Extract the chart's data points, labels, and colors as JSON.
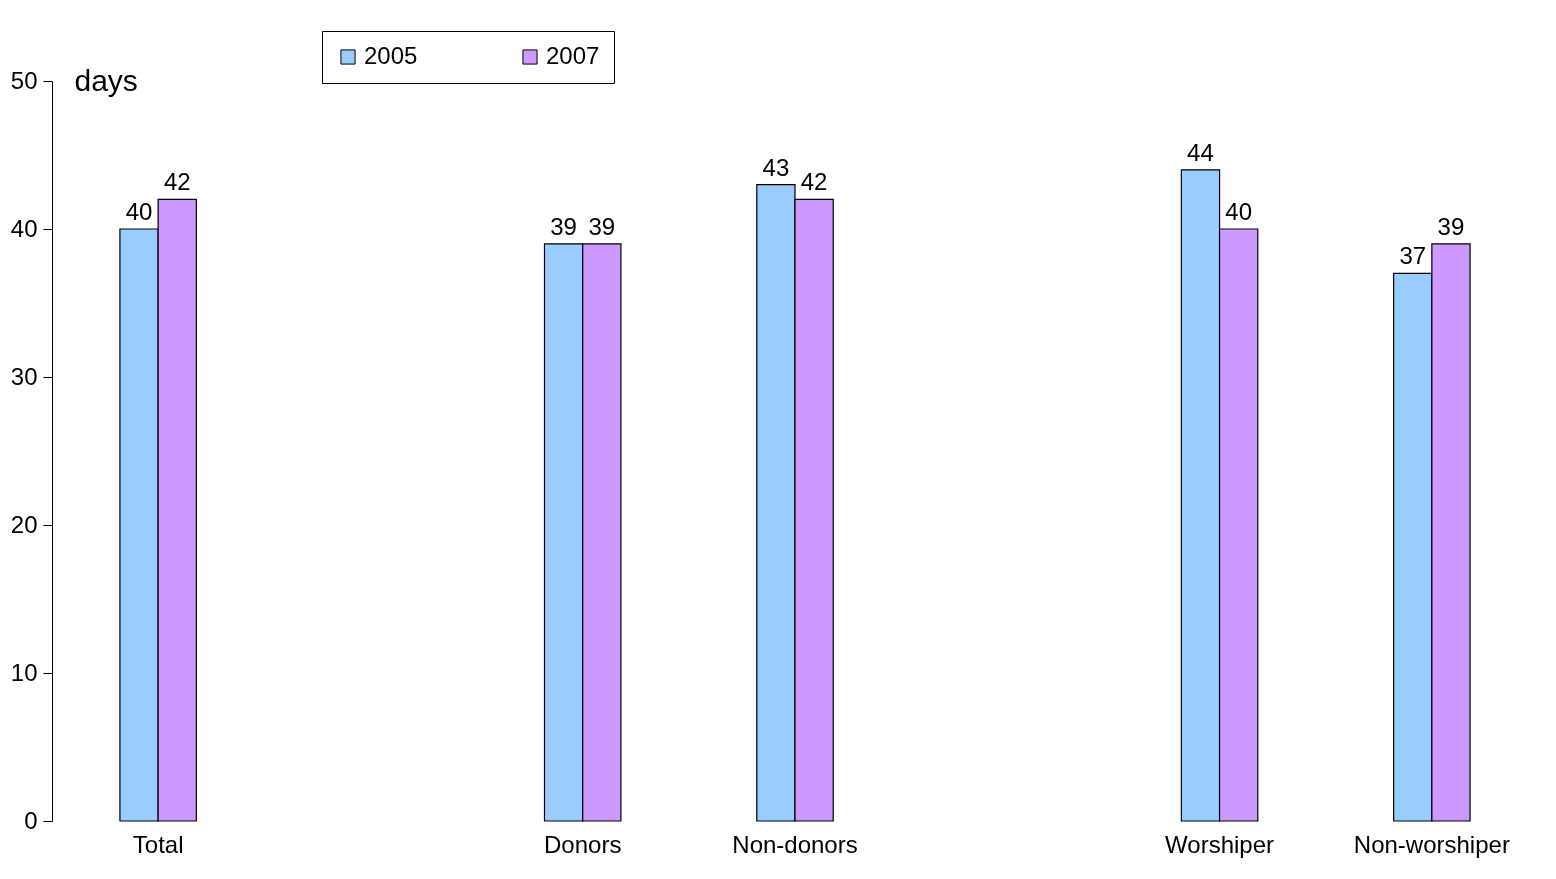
{
  "chart_data": {
    "type": "bar",
    "ylabel": "days",
    "categories": [
      "Total",
      null,
      "Donors",
      "Non-donors",
      null,
      "Worshiper",
      "Non-worshiper"
    ],
    "series": [
      {
        "name": "2005",
        "color": "#99ccff",
        "values": [
          40,
          null,
          39,
          43,
          null,
          44,
          37
        ]
      },
      {
        "name": "2007",
        "color": "#cc99ff",
        "values": [
          42,
          null,
          39,
          42,
          null,
          40,
          39
        ]
      }
    ],
    "ylim": [
      0,
      50
    ],
    "yticks": [
      0,
      10,
      20,
      30,
      40,
      50
    ],
    "grid": false,
    "legend": "top",
    "data_labels": true
  }
}
